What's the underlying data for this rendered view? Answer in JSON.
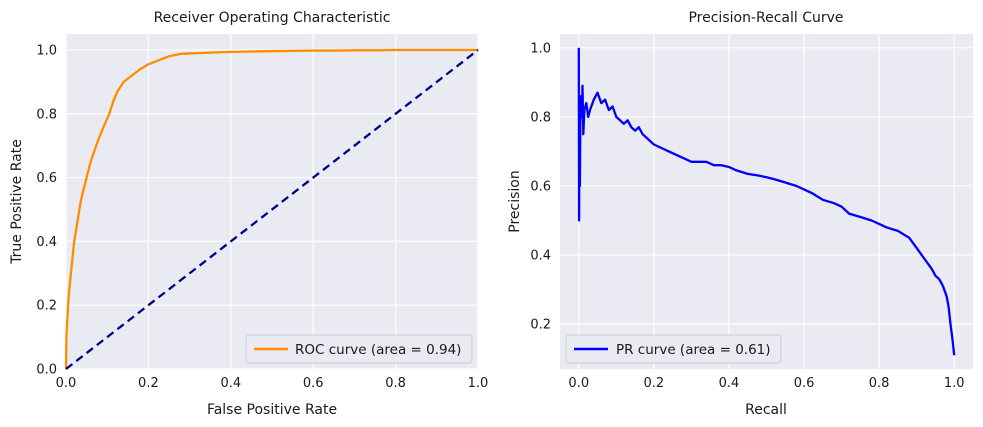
{
  "chart_data": [
    {
      "type": "line",
      "title": "Receiver Operating Characteristic",
      "xlabel": "False Positive Rate",
      "ylabel": "True Positive Rate",
      "xlim": [
        0,
        1
      ],
      "ylim": [
        0,
        1.05
      ],
      "x_ticks": [
        "0.0",
        "0.2",
        "0.4",
        "0.6",
        "0.8",
        "1.0"
      ],
      "y_ticks": [
        "0.0",
        "0.2",
        "0.4",
        "0.6",
        "0.8",
        "1.0"
      ],
      "grid": true,
      "legend_position": "lower right",
      "series": [
        {
          "name": "ROC curve (area = 0.94)",
          "color": "#ff8c00",
          "style": "solid",
          "x": [
            0,
            0.001,
            0.003,
            0.005,
            0.008,
            0.012,
            0.016,
            0.02,
            0.025,
            0.03,
            0.035,
            0.04,
            0.046,
            0.052,
            0.06,
            0.068,
            0.076,
            0.085,
            0.095,
            0.105,
            0.115,
            0.125,
            0.14,
            0.16,
            0.18,
            0.2,
            0.22,
            0.25,
            0.28,
            0.32,
            0.36,
            0.4,
            0.45,
            0.5,
            0.55,
            0.6,
            0.65,
            0.7,
            0.75,
            0.8,
            0.85,
            0.9,
            0.95,
            1.0
          ],
          "y": [
            0,
            0.1,
            0.15,
            0.2,
            0.25,
            0.3,
            0.35,
            0.4,
            0.44,
            0.48,
            0.52,
            0.55,
            0.58,
            0.61,
            0.65,
            0.68,
            0.71,
            0.74,
            0.77,
            0.8,
            0.84,
            0.87,
            0.9,
            0.92,
            0.94,
            0.955,
            0.965,
            0.98,
            0.988,
            0.99,
            0.992,
            0.994,
            0.995,
            0.996,
            0.997,
            0.998,
            0.998,
            0.999,
            0.999,
            1.0,
            1.0,
            1.0,
            1.0,
            1.0
          ]
        },
        {
          "name": "",
          "color": "#000080",
          "style": "dashed",
          "x": [
            0,
            1
          ],
          "y": [
            0,
            1
          ]
        }
      ]
    },
    {
      "type": "line",
      "title": "Precision-Recall Curve",
      "xlabel": "Recall",
      "ylabel": "Precision",
      "xlim": [
        -0.05,
        1.05
      ],
      "ylim": [
        0.07,
        1.04
      ],
      "x_ticks": [
        "0.0",
        "0.2",
        "0.4",
        "0.6",
        "0.8",
        "1.0"
      ],
      "y_ticks": [
        "0.2",
        "0.4",
        "0.6",
        "0.8",
        "1.0"
      ],
      "grid": true,
      "legend_position": "lower left",
      "series": [
        {
          "name": "PR curve (area = 0.61)",
          "color": "#0000ff",
          "style": "solid",
          "x": [
            0,
            0.001,
            0.002,
            0.003,
            0.004,
            0.006,
            0.008,
            0.01,
            0.012,
            0.015,
            0.02,
            0.025,
            0.03,
            0.04,
            0.05,
            0.06,
            0.07,
            0.08,
            0.09,
            0.1,
            0.11,
            0.12,
            0.13,
            0.14,
            0.15,
            0.16,
            0.17,
            0.18,
            0.2,
            0.22,
            0.24,
            0.26,
            0.28,
            0.3,
            0.32,
            0.34,
            0.36,
            0.38,
            0.4,
            0.42,
            0.45,
            0.48,
            0.5,
            0.52,
            0.55,
            0.58,
            0.6,
            0.62,
            0.65,
            0.68,
            0.7,
            0.72,
            0.75,
            0.78,
            0.8,
            0.82,
            0.85,
            0.88,
            0.9,
            0.92,
            0.94,
            0.95,
            0.96,
            0.97,
            0.98,
            0.985,
            0.99,
            0.995,
            1.0
          ],
          "y": [
            1.0,
            0.5,
            0.82,
            0.6,
            0.78,
            0.86,
            0.8,
            0.89,
            0.75,
            0.82,
            0.84,
            0.8,
            0.82,
            0.85,
            0.87,
            0.84,
            0.85,
            0.82,
            0.83,
            0.8,
            0.79,
            0.78,
            0.79,
            0.77,
            0.76,
            0.77,
            0.75,
            0.74,
            0.72,
            0.71,
            0.7,
            0.69,
            0.68,
            0.67,
            0.67,
            0.67,
            0.66,
            0.66,
            0.655,
            0.645,
            0.635,
            0.63,
            0.625,
            0.62,
            0.61,
            0.6,
            0.59,
            0.58,
            0.56,
            0.55,
            0.54,
            0.52,
            0.51,
            0.5,
            0.49,
            0.48,
            0.47,
            0.45,
            0.42,
            0.39,
            0.36,
            0.34,
            0.33,
            0.31,
            0.28,
            0.25,
            0.2,
            0.16,
            0.11
          ]
        }
      ]
    }
  ]
}
